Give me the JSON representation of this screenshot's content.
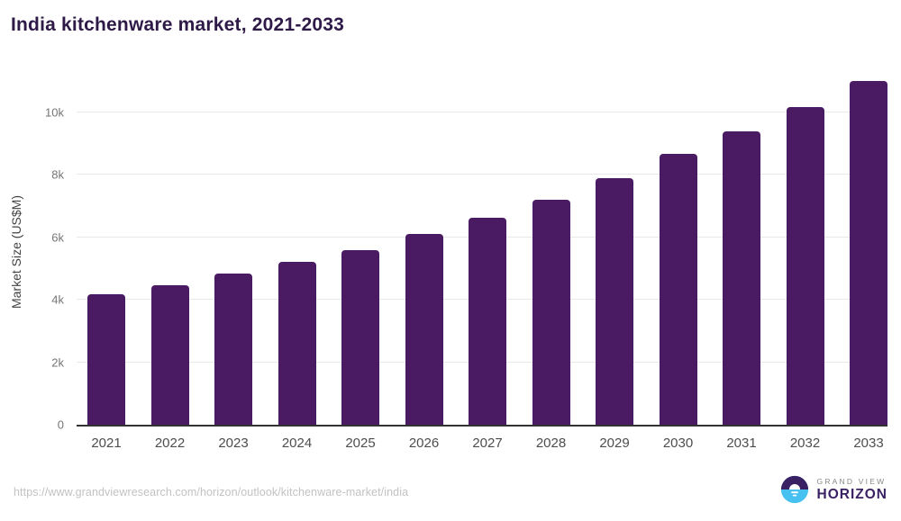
{
  "title": "India kitchenware market, 2021-2033",
  "chart_data": {
    "type": "bar",
    "title": "India kitchenware market, 2021-2033",
    "categories": [
      "2021",
      "2022",
      "2023",
      "2024",
      "2025",
      "2026",
      "2027",
      "2028",
      "2029",
      "2030",
      "2031",
      "2032",
      "2033"
    ],
    "values": [
      4180,
      4470,
      4830,
      5200,
      5600,
      6110,
      6630,
      7210,
      7890,
      8660,
      9400,
      10170,
      11000
    ],
    "xlabel": "",
    "ylabel": "Market Size (US$M)",
    "ylim": [
      0,
      11200
    ],
    "yticks": [
      {
        "value": 0,
        "label": "0"
      },
      {
        "value": 2000,
        "label": "2k"
      },
      {
        "value": 4000,
        "label": "4k"
      },
      {
        "value": 6000,
        "label": "6k"
      },
      {
        "value": 8000,
        "label": "8k"
      },
      {
        "value": 10000,
        "label": "10k"
      }
    ],
    "grid": "horizontal-only",
    "legend": "none",
    "bar_color": "#4a1a63"
  },
  "colors": {
    "accent_purple": "#4a1a63",
    "title_text": "#2e1a47",
    "axis_line": "#333333",
    "gridline": "#e8e8e8",
    "ytick_text": "#757575",
    "xtick_text": "#4d4d4d",
    "url_text": "#c2c2c2",
    "logo_purple": "#3a2164",
    "logo_blue": "#47c1f0",
    "logo_gray": "#8a8a8a"
  },
  "footer": {
    "source_url": "https://www.grandviewresearch.com/horizon/outlook/kitchenware-market/india",
    "logo": {
      "line1": "GRAND VIEW",
      "line2": "HORIZON"
    }
  }
}
